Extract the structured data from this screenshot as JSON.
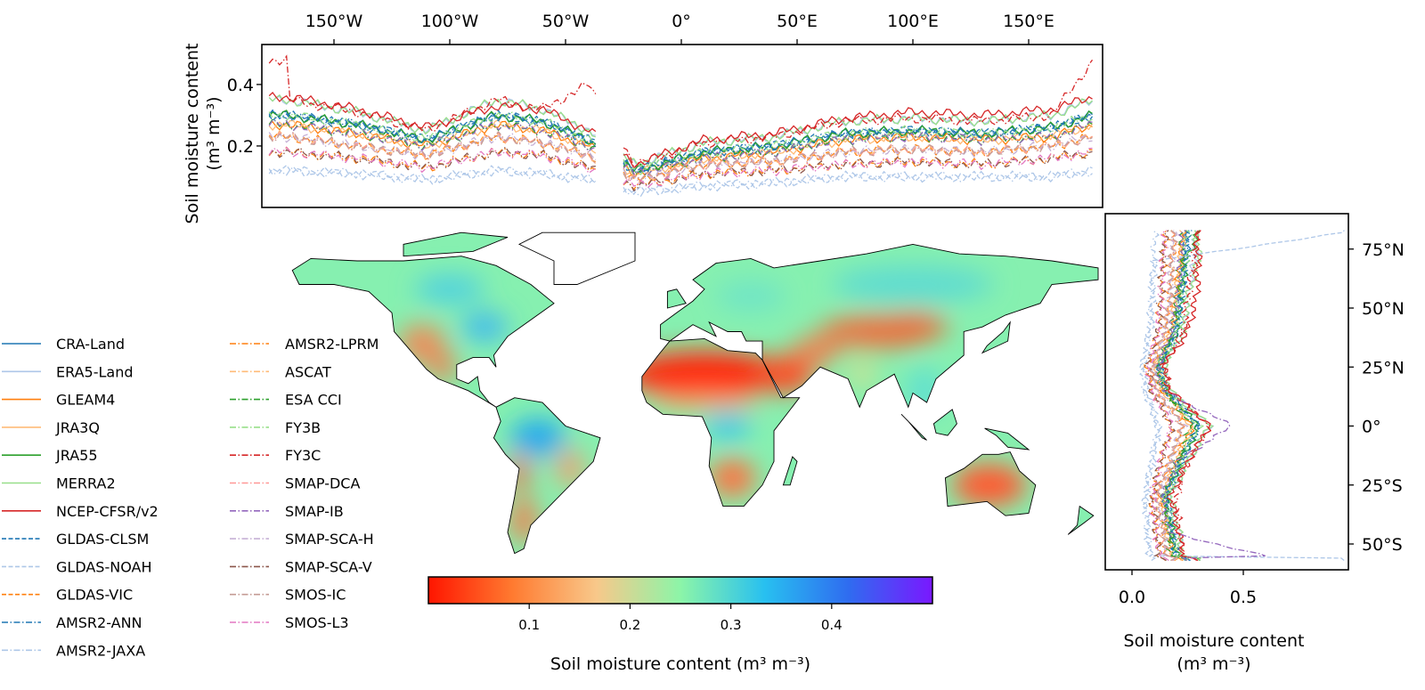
{
  "chart_data": [
    {
      "type": "line",
      "panel": "top longitudinal profile",
      "ylabel": "Soil moisture content",
      "ylabel_unit": "(m³ m⁻³)",
      "x_tick_labels": [
        "150°W",
        "100°W",
        "50°W",
        "0°",
        "50°E",
        "100°E",
        "150°E"
      ],
      "x_ticks": [
        -150,
        -100,
        -50,
        0,
        50,
        100,
        150
      ],
      "y_tick_labels": [
        "0.2",
        "0.4"
      ],
      "y_ticks": [
        0.2,
        0.4
      ],
      "xlim": [
        -180,
        180
      ],
      "ylim": [
        0,
        0.53
      ],
      "x": [
        -170,
        -140,
        -110,
        -80,
        -60,
        -40,
        -20,
        10,
        40,
        70,
        100,
        130,
        160,
        178
      ]
    },
    {
      "type": "line",
      "panel": "right latitudinal profile",
      "xlabel": "Soil moisture content",
      "xlabel_unit": "(m³ m⁻³)",
      "x_tick_labels": [
        "0.0",
        "0.5"
      ],
      "x_ticks": [
        0,
        0.5
      ],
      "y_tick_labels": [
        "75°N",
        "50°N",
        "25°N",
        "0°",
        "25°S",
        "50°S"
      ],
      "y_ticks": [
        75,
        50,
        25,
        0,
        -25,
        -50
      ],
      "xlim": [
        -0.12,
        0.98
      ],
      "ylim": [
        -60,
        90
      ],
      "y": [
        82,
        70,
        55,
        40,
        25,
        15,
        0,
        -15,
        -30,
        -45,
        -55
      ]
    },
    {
      "type": "heatmap",
      "panel": "map",
      "colorbar_label": "Soil moisture content (m³ m⁻³)",
      "colorbar_ticks": [
        "0.1",
        "0.2",
        "0.3",
        "0.4"
      ],
      "colorbar_range": [
        0,
        0.5
      ],
      "colormap": [
        "#ff1500",
        "#ff7a30",
        "#f8c88a",
        "#8cf5a8",
        "#28c0f0",
        "#2f6cf0",
        "#7a18ff"
      ]
    }
  ],
  "series": [
    {
      "name": "CRA-Land",
      "color": "#1f77b4",
      "style": "solid",
      "top": [
        0.3,
        0.27,
        0.22,
        0.3,
        0.28,
        0.22,
        0.12,
        0.18,
        0.2,
        0.24,
        0.25,
        0.24,
        0.26,
        0.3
      ],
      "right": [
        0.25,
        0.24,
        0.22,
        0.2,
        0.12,
        0.15,
        0.3,
        0.22,
        0.15,
        0.18,
        0.2
      ]
    },
    {
      "name": "ERA5-Land",
      "color": "#aec7e8",
      "style": "solid",
      "top": [
        0.35,
        0.31,
        0.25,
        0.35,
        0.32,
        0.25,
        0.14,
        0.21,
        0.23,
        0.28,
        0.29,
        0.28,
        0.3,
        0.35
      ],
      "right": [
        0.29,
        0.28,
        0.25,
        0.23,
        0.14,
        0.17,
        0.35,
        0.25,
        0.17,
        0.21,
        0.23
      ]
    },
    {
      "name": "GLEAM4",
      "color": "#ff7f0e",
      "style": "solid",
      "top": [
        0.27,
        0.24,
        0.2,
        0.27,
        0.25,
        0.2,
        0.11,
        0.16,
        0.18,
        0.22,
        0.23,
        0.22,
        0.23,
        0.27
      ],
      "right": [
        0.23,
        0.22,
        0.2,
        0.18,
        0.11,
        0.14,
        0.27,
        0.2,
        0.14,
        0.16,
        0.18
      ]
    },
    {
      "name": "JRA3Q",
      "color": "#ffbb78",
      "style": "solid",
      "top": [
        0.27,
        0.24,
        0.2,
        0.27,
        0.25,
        0.2,
        0.11,
        0.16,
        0.18,
        0.22,
        0.23,
        0.22,
        0.23,
        0.27
      ],
      "right": [
        0.23,
        0.22,
        0.2,
        0.18,
        0.11,
        0.14,
        0.27,
        0.2,
        0.14,
        0.16,
        0.18
      ]
    },
    {
      "name": "JRA55",
      "color": "#2ca02c",
      "style": "solid",
      "top": [
        0.3,
        0.27,
        0.22,
        0.3,
        0.28,
        0.22,
        0.12,
        0.18,
        0.2,
        0.24,
        0.25,
        0.24,
        0.26,
        0.3
      ],
      "right": [
        0.3,
        0.24,
        0.22,
        0.2,
        0.12,
        0.15,
        0.3,
        0.22,
        0.15,
        0.18,
        0.2
      ]
    },
    {
      "name": "MERRA2",
      "color": "#98df8a",
      "style": "solid",
      "top": [
        0.35,
        0.31,
        0.25,
        0.35,
        0.32,
        0.25,
        0.14,
        0.21,
        0.23,
        0.28,
        0.29,
        0.28,
        0.3,
        0.35
      ],
      "right": [
        0.29,
        0.3,
        0.25,
        0.23,
        0.14,
        0.17,
        0.35,
        0.25,
        0.17,
        0.21,
        0.23
      ]
    },
    {
      "name": "NCEP-CFSR/v2",
      "color": "#d62728",
      "style": "solid",
      "top": [
        0.36,
        0.32,
        0.26,
        0.33,
        0.32,
        0.25,
        0.14,
        0.22,
        0.24,
        0.29,
        0.31,
        0.3,
        0.32,
        0.36
      ],
      "right": [
        0.29,
        0.3,
        0.29,
        0.25,
        0.14,
        0.17,
        0.35,
        0.25,
        0.17,
        0.21,
        0.23
      ]
    },
    {
      "name": "GLDAS-CLSM",
      "color": "#1f77b4",
      "style": "dashed",
      "top": [
        0.3,
        0.27,
        0.22,
        0.3,
        0.28,
        0.22,
        0.12,
        0.18,
        0.2,
        0.24,
        0.25,
        0.24,
        0.26,
        0.3
      ],
      "right": [
        0.25,
        0.24,
        0.22,
        0.2,
        0.12,
        0.15,
        0.3,
        0.22,
        0.15,
        0.18,
        0.2
      ]
    },
    {
      "name": "GLDAS-NOAH",
      "color": "#aec7e8",
      "style": "dashed",
      "top": [
        0.12,
        0.11,
        0.09,
        0.12,
        0.11,
        0.09,
        0.05,
        0.07,
        0.08,
        0.1,
        0.1,
        0.1,
        0.1,
        0.12
      ],
      "right": [
        0.95,
        0.1,
        0.09,
        0.08,
        0.05,
        0.06,
        0.12,
        0.09,
        0.06,
        0.07,
        0.08
      ]
    },
    {
      "name": "GLDAS-VIC",
      "color": "#ff7f0e",
      "style": "dashed",
      "top": [
        0.23,
        0.2,
        0.17,
        0.23,
        0.21,
        0.17,
        0.09,
        0.14,
        0.15,
        0.18,
        0.19,
        0.18,
        0.2,
        0.23
      ],
      "right": [
        0.19,
        0.18,
        0.17,
        0.15,
        0.09,
        0.11,
        0.23,
        0.17,
        0.11,
        0.14,
        0.15
      ]
    },
    {
      "name": "AMSR2-ANN",
      "color": "#1f77b4",
      "style": "dashdot",
      "top": [
        0.3,
        0.27,
        0.22,
        0.3,
        0.28,
        0.22,
        0.12,
        0.18,
        0.2,
        0.24,
        0.25,
        0.24,
        0.26,
        0.3
      ],
      "right": [
        0.25,
        0.24,
        0.22,
        0.2,
        0.12,
        0.15,
        0.3,
        0.22,
        0.15,
        0.18,
        0.2
      ]
    },
    {
      "name": "AMSR2-JAXA",
      "color": "#aec7e8",
      "style": "dashdot",
      "top": [
        0.12,
        0.11,
        0.09,
        0.12,
        0.11,
        0.09,
        0.05,
        0.07,
        0.08,
        0.1,
        0.1,
        0.1,
        0.1,
        0.12
      ],
      "right": [
        0.1,
        0.1,
        0.09,
        0.08,
        0.05,
        0.06,
        0.12,
        0.09,
        0.06,
        0.07,
        0.08
      ]
    },
    {
      "name": "AMSR2-LPRM",
      "color": "#ff7f0e",
      "style": "dashdot",
      "top": [
        0.18,
        0.16,
        0.13,
        0.18,
        0.17,
        0.13,
        0.07,
        0.11,
        0.12,
        0.14,
        0.15,
        0.14,
        0.16,
        0.18
      ],
      "right": [
        0.15,
        0.14,
        0.13,
        0.12,
        0.07,
        0.09,
        0.18,
        0.13,
        0.09,
        0.11,
        0.12
      ]
    },
    {
      "name": "ASCAT",
      "color": "#ffbb78",
      "style": "dashdot",
      "top": [
        0.23,
        0.2,
        0.17,
        0.23,
        0.21,
        0.17,
        0.09,
        0.14,
        0.15,
        0.18,
        0.19,
        0.18,
        0.2,
        0.23
      ],
      "right": [
        0.19,
        0.18,
        0.17,
        0.15,
        0.09,
        0.11,
        0.23,
        0.17,
        0.11,
        0.14,
        0.15
      ]
    },
    {
      "name": "ESA CCI",
      "color": "#2ca02c",
      "style": "dashdot",
      "top": [
        0.27,
        0.24,
        0.2,
        0.27,
        0.25,
        0.2,
        0.11,
        0.16,
        0.18,
        0.22,
        0.23,
        0.22,
        0.23,
        0.27
      ],
      "right": [
        0.23,
        0.22,
        0.2,
        0.18,
        0.11,
        0.14,
        0.27,
        0.2,
        0.14,
        0.16,
        0.18
      ]
    },
    {
      "name": "FY3B",
      "color": "#98df8a",
      "style": "dashdot",
      "top": [
        0.3,
        0.27,
        0.22,
        0.3,
        0.28,
        0.22,
        0.12,
        0.18,
        0.2,
        0.24,
        0.25,
        0.24,
        0.26,
        0.3
      ],
      "right": [
        0.25,
        0.24,
        0.22,
        0.2,
        0.12,
        0.15,
        0.3,
        0.22,
        0.15,
        0.18,
        0.2
      ]
    },
    {
      "name": "FY3C",
      "color": "#d62728",
      "style": "dashdot",
      "top": [
        0.35,
        0.31,
        0.25,
        0.35,
        0.32,
        0.4,
        0.14,
        0.21,
        0.23,
        0.28,
        0.29,
        0.28,
        0.3,
        0.48
      ],
      "right": [
        0.29,
        0.28,
        0.25,
        0.23,
        0.14,
        0.17,
        0.35,
        0.25,
        0.2,
        0.21,
        0.23
      ]
    },
    {
      "name": "SMAP-DCA",
      "color": "#ff9896",
      "style": "dashdot",
      "top": [
        0.23,
        0.2,
        0.17,
        0.23,
        0.21,
        0.17,
        0.09,
        0.14,
        0.15,
        0.18,
        0.19,
        0.18,
        0.2,
        0.23
      ],
      "right": [
        0.19,
        0.18,
        0.17,
        0.15,
        0.09,
        0.11,
        0.23,
        0.17,
        0.11,
        0.14,
        0.15
      ]
    },
    {
      "name": "SMAP-IB",
      "color": "#9467bd",
      "style": "dashdot",
      "top": [
        0.27,
        0.24,
        0.2,
        0.27,
        0.25,
        0.2,
        0.11,
        0.16,
        0.18,
        0.22,
        0.23,
        0.22,
        0.23,
        0.27
      ],
      "right": [
        0.23,
        0.22,
        0.2,
        0.18,
        0.11,
        0.14,
        0.45,
        0.2,
        0.14,
        0.16,
        0.6
      ]
    },
    {
      "name": "SMAP-SCA-H",
      "color": "#c5b0d5",
      "style": "dashdot",
      "top": [
        0.23,
        0.2,
        0.17,
        0.23,
        0.21,
        0.17,
        0.09,
        0.14,
        0.15,
        0.18,
        0.19,
        0.18,
        0.2,
        0.23
      ],
      "right": [
        0.19,
        0.18,
        0.17,
        0.15,
        0.09,
        0.11,
        0.23,
        0.17,
        0.11,
        0.14,
        0.15
      ]
    },
    {
      "name": "SMAP-SCA-V",
      "color": "#8c564b",
      "style": "dashdot",
      "top": [
        0.18,
        0.16,
        0.13,
        0.18,
        0.17,
        0.13,
        0.07,
        0.11,
        0.12,
        0.14,
        0.15,
        0.14,
        0.16,
        0.18
      ],
      "right": [
        0.15,
        0.14,
        0.13,
        0.12,
        0.07,
        0.09,
        0.18,
        0.13,
        0.09,
        0.11,
        0.12
      ]
    },
    {
      "name": "SMOS-IC",
      "color": "#c49c94",
      "style": "dashdot",
      "top": [
        0.23,
        0.2,
        0.17,
        0.23,
        0.21,
        0.17,
        0.09,
        0.14,
        0.15,
        0.18,
        0.19,
        0.18,
        0.2,
        0.23
      ],
      "right": [
        0.19,
        0.18,
        0.17,
        0.15,
        0.09,
        0.11,
        0.23,
        0.17,
        0.11,
        0.14,
        0.15
      ]
    },
    {
      "name": "SMOS-L3",
      "color": "#e377c2",
      "style": "dashdot",
      "top": [
        0.18,
        0.16,
        0.13,
        0.18,
        0.17,
        0.13,
        0.07,
        0.11,
        0.12,
        0.14,
        0.15,
        0.14,
        0.16,
        0.18
      ],
      "right": [
        0.15,
        0.14,
        0.13,
        0.12,
        0.07,
        0.09,
        0.18,
        0.13,
        0.09,
        0.11,
        0.12
      ]
    }
  ]
}
